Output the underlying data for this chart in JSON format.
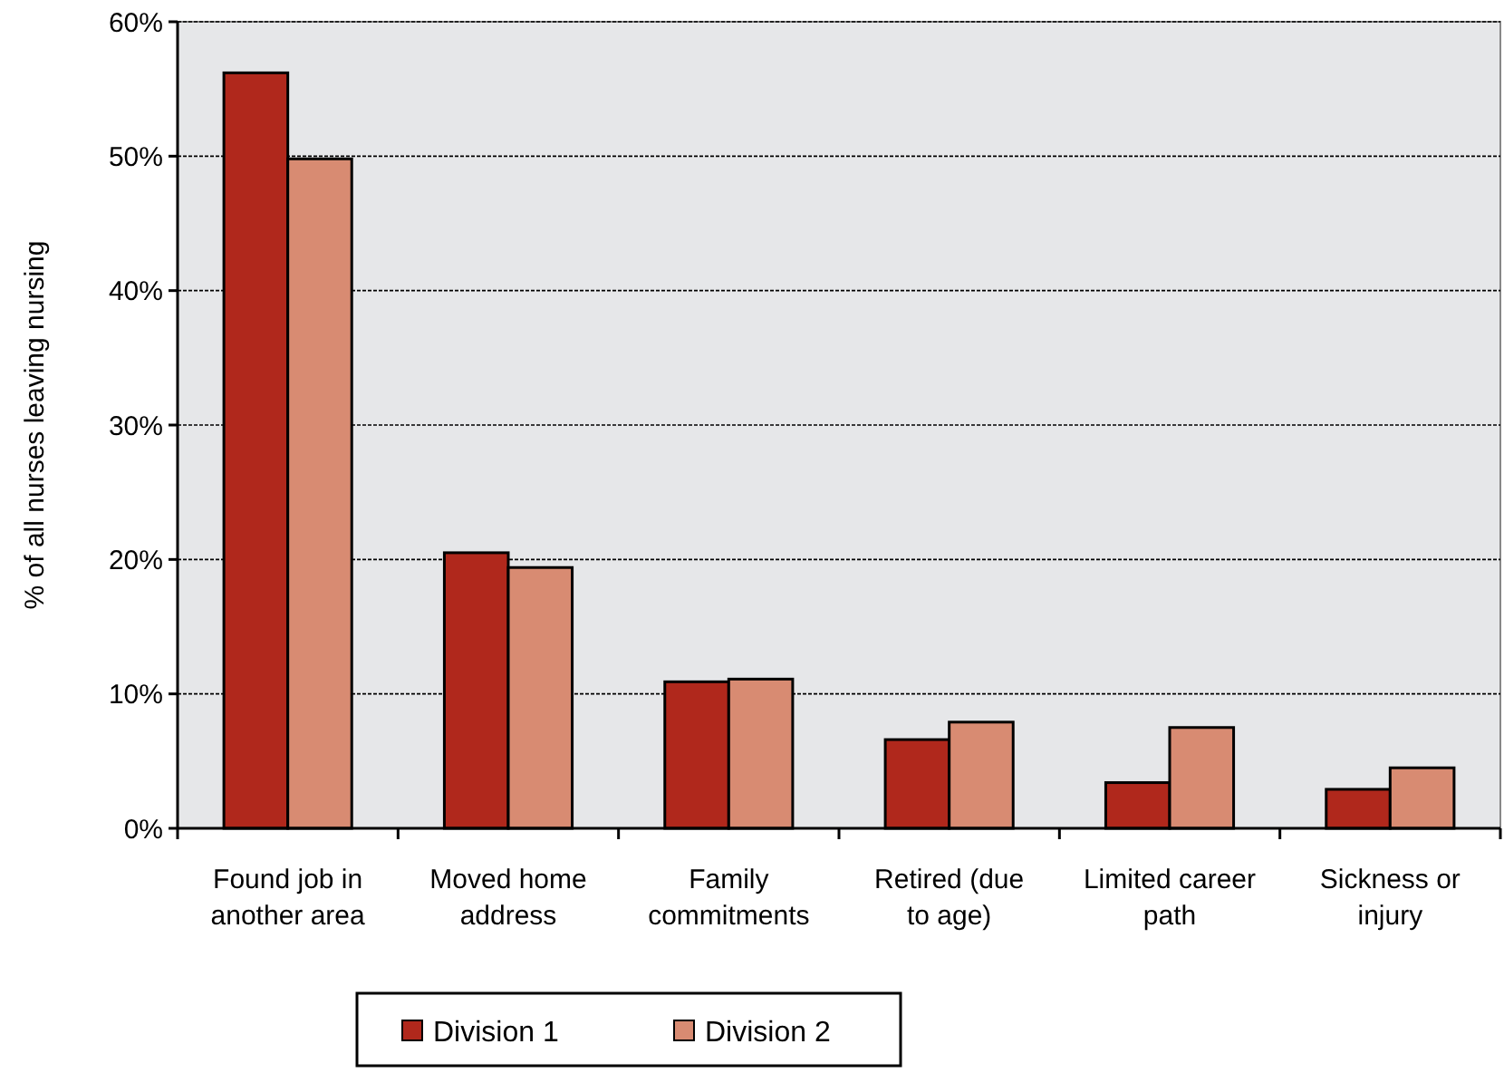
{
  "chart_data": {
    "type": "bar",
    "ylabel": "% of all nurses leaving nursing",
    "categories": [
      "Found job in another area",
      "Moved home address",
      "Family commitments",
      "Retired (due to age)",
      "Limited career path",
      "Sickness or injury"
    ],
    "series": [
      {
        "name": "Division 1",
        "color": "#b0281c",
        "values": [
          56.2,
          20.5,
          10.9,
          6.6,
          3.4,
          2.9
        ]
      },
      {
        "name": "Division 2",
        "color": "#d88b72",
        "values": [
          49.8,
          19.4,
          11.1,
          7.9,
          7.5,
          4.5
        ]
      }
    ],
    "ylim": [
      0,
      60
    ],
    "yticks": [
      {
        "value": 0,
        "label": "0%"
      },
      {
        "value": 10,
        "label": "10%"
      },
      {
        "value": 20,
        "label": "20%"
      },
      {
        "value": 30,
        "label": "30%"
      },
      {
        "value": 40,
        "label": "40%"
      },
      {
        "value": 50,
        "label": "50%"
      },
      {
        "value": 60,
        "label": "60%"
      }
    ],
    "grid": "y",
    "legend": "bottom"
  }
}
